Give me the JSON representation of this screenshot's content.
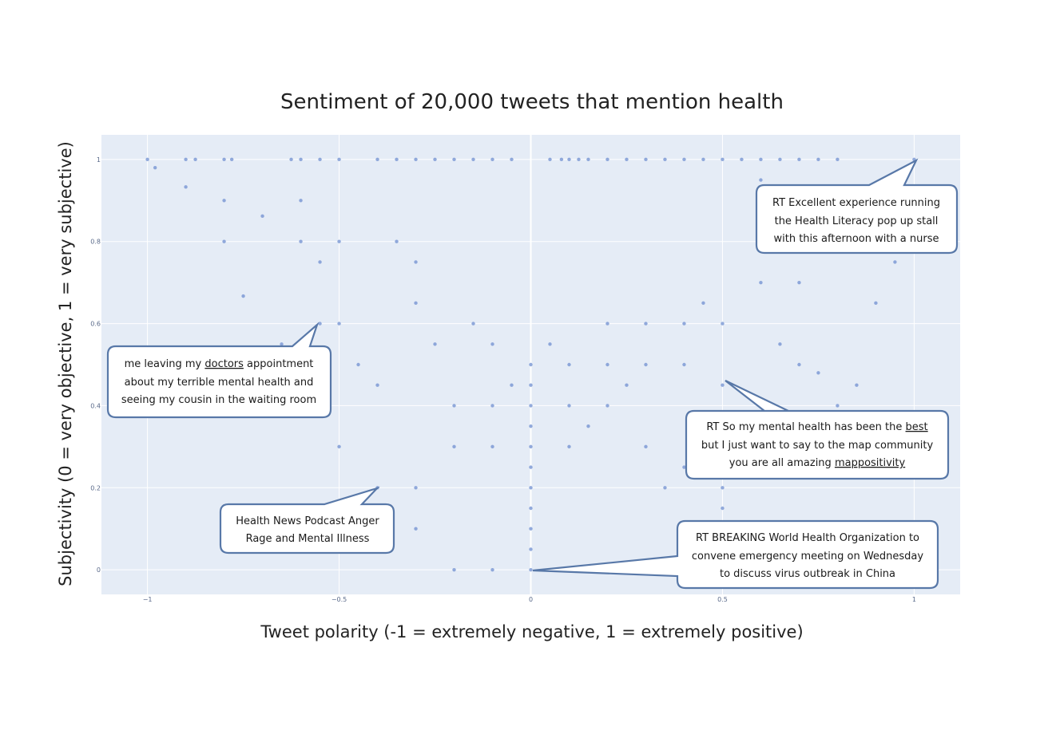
{
  "chart_data": {
    "type": "scatter",
    "title": "Sentiment of 20,000 tweets that mention health",
    "xlabel": "Tweet polarity (-1 = extremely negative, 1 = extremely positive)",
    "ylabel": "Subjectivity (0 = very objective, 1 = very subjective)",
    "xlim": [
      -1.12,
      1.12
    ],
    "ylim": [
      -0.06,
      1.06
    ],
    "xticks": [
      {
        "value": -1,
        "label": "−1"
      },
      {
        "value": -0.5,
        "label": "−0.5"
      },
      {
        "value": 0,
        "label": "0"
      },
      {
        "value": 0.5,
        "label": "0.5"
      },
      {
        "value": 1,
        "label": "1"
      }
    ],
    "yticks": [
      {
        "value": 0,
        "label": "0"
      },
      {
        "value": 0.2,
        "label": "0.2"
      },
      {
        "value": 0.4,
        "label": "0.4"
      },
      {
        "value": 0.6,
        "label": "0.6"
      },
      {
        "value": 0.8,
        "label": "0.8"
      },
      {
        "value": 1,
        "label": "1"
      }
    ],
    "grid": true,
    "marker_color": "#6f8fd0",
    "plot_background": "#e5ecf6",
    "points": [
      [
        -1,
        1
      ],
      [
        -0.98,
        0.98
      ],
      [
        -0.9,
        1
      ],
      [
        -0.875,
        1
      ],
      [
        -0.8,
        1
      ],
      [
        -0.78,
        1
      ],
      [
        -0.625,
        1
      ],
      [
        -0.6,
        1
      ],
      [
        -0.55,
        1
      ],
      [
        -0.5,
        1
      ],
      [
        -0.4,
        1
      ],
      [
        -0.35,
        1
      ],
      [
        -0.3,
        1
      ],
      [
        -0.25,
        1
      ],
      [
        -0.2,
        1
      ],
      [
        -0.15,
        1
      ],
      [
        -0.1,
        1
      ],
      [
        -0.05,
        1
      ],
      [
        0.05,
        1
      ],
      [
        0.08,
        1
      ],
      [
        0.1,
        1
      ],
      [
        0.125,
        1
      ],
      [
        0.15,
        1
      ],
      [
        0.2,
        1
      ],
      [
        0.25,
        1
      ],
      [
        0.3,
        1
      ],
      [
        0.35,
        1
      ],
      [
        0.4,
        1
      ],
      [
        0.45,
        1
      ],
      [
        0.5,
        1
      ],
      [
        0.55,
        1
      ],
      [
        0.6,
        1
      ],
      [
        0.65,
        1
      ],
      [
        0.7,
        1
      ],
      [
        0.75,
        1
      ],
      [
        0.8,
        1
      ],
      [
        1,
        1
      ],
      [
        -0.9,
        0.933
      ],
      [
        -0.8,
        0.9
      ],
      [
        -0.6,
        0.9
      ],
      [
        -0.7,
        0.862
      ],
      [
        -0.8,
        0.8
      ],
      [
        -0.6,
        0.8
      ],
      [
        -0.5,
        0.8
      ],
      [
        -0.75,
        0.667
      ],
      [
        -0.8,
        0.4
      ],
      [
        -0.65,
        0.55
      ],
      [
        -0.55,
        0.75
      ],
      [
        -0.35,
        0.8
      ],
      [
        -0.3,
        0.75
      ],
      [
        -0.5,
        0.6
      ],
      [
        -0.5,
        0.3
      ],
      [
        -0.55,
        0.6
      ],
      [
        -0.45,
        0.5
      ],
      [
        -0.4,
        0.45
      ],
      [
        -0.4,
        0.2
      ],
      [
        -0.3,
        0.65
      ],
      [
        -0.3,
        0.2
      ],
      [
        -0.3,
        0.1
      ],
      [
        -0.25,
        0.55
      ],
      [
        -0.2,
        0.0
      ],
      [
        -0.1,
        0.0
      ],
      [
        0.0,
        0.0
      ],
      [
        0.1,
        0.0
      ],
      [
        0.2,
        0.0
      ],
      [
        0.3,
        0.0
      ],
      [
        0.45,
        0.0
      ],
      [
        0.5,
        0.0
      ],
      [
        0.6,
        0.7
      ],
      [
        0.7,
        0.7
      ],
      [
        0.8,
        0.3
      ],
      [
        0.9,
        0.65
      ],
      [
        0.8,
        0.4
      ],
      [
        0.85,
        0.45
      ],
      [
        0.75,
        0.48
      ],
      [
        0.7,
        0.5
      ],
      [
        0.65,
        0.55
      ],
      [
        0.9,
        0.8
      ],
      [
        0.95,
        0.75
      ],
      [
        0.8,
        0.85
      ],
      [
        0.7,
        0.9
      ],
      [
        0.6,
        0.95
      ],
      [
        0.5,
        0.2
      ],
      [
        0.5,
        0.15
      ],
      [
        0.4,
        0.25
      ],
      [
        0.3,
        0.3
      ],
      [
        0.35,
        0.2
      ],
      [
        -0.15,
        0.6
      ],
      [
        -0.1,
        0.55
      ],
      [
        0.0,
        0.5
      ],
      [
        0.0,
        0.45
      ],
      [
        0.0,
        0.4
      ],
      [
        0.0,
        0.35
      ],
      [
        0.0,
        0.3
      ],
      [
        0.0,
        0.25
      ],
      [
        0.0,
        0.2
      ],
      [
        0.0,
        0.15
      ],
      [
        0.0,
        0.1
      ],
      [
        0.0,
        0.05
      ],
      [
        0.1,
        0.5
      ],
      [
        0.1,
        0.4
      ],
      [
        0.1,
        0.3
      ],
      [
        0.2,
        0.6
      ],
      [
        0.2,
        0.5
      ],
      [
        0.2,
        0.4
      ],
      [
        0.3,
        0.6
      ],
      [
        0.3,
        0.5
      ],
      [
        0.4,
        0.6
      ],
      [
        0.4,
        0.5
      ],
      [
        -0.1,
        0.4
      ],
      [
        -0.1,
        0.3
      ],
      [
        -0.2,
        0.4
      ],
      [
        -0.2,
        0.3
      ],
      [
        0.15,
        0.35
      ],
      [
        0.25,
        0.45
      ],
      [
        -0.05,
        0.45
      ],
      [
        0.05,
        0.55
      ],
      [
        0.5,
        0.45
      ],
      [
        0.5,
        0.6
      ],
      [
        0.45,
        0.65
      ]
    ]
  },
  "annotations": [
    {
      "id": "callout-top-right",
      "lines": [
        "RT Excellent experience running",
        "the Health Literacy pop up stall",
        "with this afternoon with a nurse"
      ],
      "underlined": [],
      "point": [
        1,
        1
      ]
    },
    {
      "id": "callout-left",
      "lines": [
        "me leaving my doctors appointment",
        "about my terrible mental health and",
        "seeing my cousin in the waiting room"
      ],
      "underlined": [
        "doctors"
      ],
      "point": [
        -0.55,
        0.6
      ]
    },
    {
      "id": "callout-right-middle",
      "lines": [
        "RT So my mental health has been the best",
        "but I just want to say to the map community",
        "you are all amazing mappositivity"
      ],
      "underlined": [
        "best"
      ],
      "dotted": [
        "mappositivity"
      ],
      "point": [
        0.5,
        0.46
      ]
    },
    {
      "id": "callout-bottom-left",
      "lines": [
        "Health News Podcast Anger",
        "Rage and Mental Illness"
      ],
      "underlined": [],
      "point": [
        -0.4,
        0.2
      ]
    },
    {
      "id": "callout-bottom-right",
      "lines": [
        "RT BREAKING World Health Organization to",
        "convene emergency meeting on Wednesday",
        "to discuss virus outbreak in China"
      ],
      "underlined": [],
      "point": [
        0.0,
        0.0
      ]
    }
  ]
}
